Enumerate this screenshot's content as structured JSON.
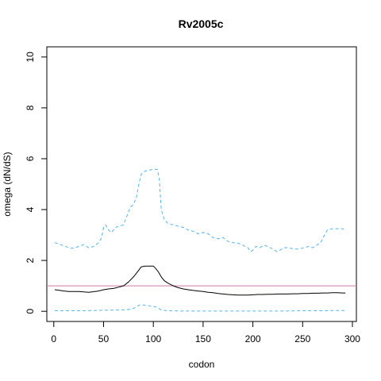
{
  "chart_data": {
    "type": "line",
    "title": "Rv2005c",
    "xlabel": "codon",
    "ylabel": "omega (dN/dS)",
    "xlim": [
      -7,
      304
    ],
    "ylim": [
      -0.4,
      10.4
    ],
    "xticks": [
      0,
      50,
      100,
      150,
      200,
      250,
      300
    ],
    "yticks": [
      0,
      2,
      4,
      6,
      8,
      10
    ],
    "grid": false,
    "reference_line": {
      "y": 1,
      "color": "#cc79a7"
    },
    "series": [
      {
        "role": "upper",
        "style": "dashed",
        "color": "#56b4e9",
        "points": [
          [
            1,
            2.7
          ],
          [
            5,
            2.65
          ],
          [
            10,
            2.58
          ],
          [
            15,
            2.5
          ],
          [
            20,
            2.48
          ],
          [
            25,
            2.55
          ],
          [
            30,
            2.62
          ],
          [
            35,
            2.5
          ],
          [
            40,
            2.55
          ],
          [
            45,
            2.7
          ],
          [
            48,
            2.9
          ],
          [
            50,
            3.3
          ],
          [
            52,
            3.4
          ],
          [
            55,
            3.2
          ],
          [
            58,
            3.1
          ],
          [
            62,
            3.3
          ],
          [
            66,
            3.35
          ],
          [
            70,
            3.4
          ],
          [
            74,
            3.8
          ],
          [
            77,
            4.1
          ],
          [
            80,
            4.2
          ],
          [
            83,
            4.5
          ],
          [
            86,
            5.1
          ],
          [
            88,
            5.4
          ],
          [
            91,
            5.5
          ],
          [
            95,
            5.55
          ],
          [
            100,
            5.58
          ],
          [
            104,
            5.58
          ],
          [
            106,
            5.2
          ],
          [
            108,
            4.0
          ],
          [
            111,
            3.6
          ],
          [
            115,
            3.45
          ],
          [
            120,
            3.4
          ],
          [
            125,
            3.35
          ],
          [
            130,
            3.3
          ],
          [
            135,
            3.2
          ],
          [
            140,
            3.15
          ],
          [
            145,
            3.05
          ],
          [
            150,
            3.1
          ],
          [
            155,
            3.05
          ],
          [
            160,
            2.9
          ],
          [
            165,
            2.85
          ],
          [
            170,
            2.9
          ],
          [
            175,
            2.75
          ],
          [
            180,
            2.7
          ],
          [
            185,
            2.68
          ],
          [
            190,
            2.6
          ],
          [
            195,
            2.5
          ],
          [
            198,
            2.35
          ],
          [
            200,
            2.4
          ],
          [
            203,
            2.55
          ],
          [
            207,
            2.5
          ],
          [
            211,
            2.6
          ],
          [
            215,
            2.55
          ],
          [
            220,
            2.45
          ],
          [
            224,
            2.35
          ],
          [
            227,
            2.4
          ],
          [
            231,
            2.5
          ],
          [
            236,
            2.5
          ],
          [
            241,
            2.45
          ],
          [
            246,
            2.45
          ],
          [
            251,
            2.5
          ],
          [
            256,
            2.55
          ],
          [
            260,
            2.5
          ],
          [
            264,
            2.6
          ],
          [
            268,
            2.7
          ],
          [
            272,
            3.0
          ],
          [
            275,
            3.2
          ],
          [
            280,
            3.25
          ],
          [
            285,
            3.25
          ],
          [
            290,
            3.25
          ],
          [
            293,
            3.2
          ]
        ]
      },
      {
        "role": "estimate",
        "style": "solid",
        "color": "#000000",
        "points": [
          [
            1,
            0.85
          ],
          [
            5,
            0.83
          ],
          [
            10,
            0.8
          ],
          [
            15,
            0.78
          ],
          [
            20,
            0.78
          ],
          [
            25,
            0.78
          ],
          [
            30,
            0.76
          ],
          [
            35,
            0.75
          ],
          [
            40,
            0.77
          ],
          [
            45,
            0.8
          ],
          [
            50,
            0.85
          ],
          [
            55,
            0.88
          ],
          [
            60,
            0.9
          ],
          [
            65,
            0.95
          ],
          [
            70,
            1.0
          ],
          [
            75,
            1.15
          ],
          [
            80,
            1.35
          ],
          [
            85,
            1.6
          ],
          [
            88,
            1.75
          ],
          [
            92,
            1.78
          ],
          [
            96,
            1.78
          ],
          [
            100,
            1.78
          ],
          [
            102,
            1.7
          ],
          [
            105,
            1.55
          ],
          [
            108,
            1.35
          ],
          [
            111,
            1.2
          ],
          [
            115,
            1.1
          ],
          [
            120,
            1.0
          ],
          [
            125,
            0.93
          ],
          [
            130,
            0.88
          ],
          [
            135,
            0.85
          ],
          [
            140,
            0.82
          ],
          [
            145,
            0.8
          ],
          [
            150,
            0.78
          ],
          [
            155,
            0.75
          ],
          [
            160,
            0.73
          ],
          [
            165,
            0.7
          ],
          [
            170,
            0.68
          ],
          [
            175,
            0.66
          ],
          [
            180,
            0.65
          ],
          [
            185,
            0.64
          ],
          [
            190,
            0.64
          ],
          [
            195,
            0.64
          ],
          [
            200,
            0.65
          ],
          [
            205,
            0.66
          ],
          [
            210,
            0.66
          ],
          [
            215,
            0.67
          ],
          [
            220,
            0.67
          ],
          [
            225,
            0.68
          ],
          [
            230,
            0.68
          ],
          [
            235,
            0.68
          ],
          [
            240,
            0.69
          ],
          [
            245,
            0.69
          ],
          [
            250,
            0.7
          ],
          [
            255,
            0.7
          ],
          [
            260,
            0.71
          ],
          [
            265,
            0.71
          ],
          [
            270,
            0.72
          ],
          [
            275,
            0.72
          ],
          [
            280,
            0.73
          ],
          [
            285,
            0.73
          ],
          [
            290,
            0.72
          ],
          [
            293,
            0.72
          ]
        ]
      },
      {
        "role": "lower",
        "style": "dashed",
        "color": "#56b4e9",
        "points": [
          [
            1,
            0.02
          ],
          [
            10,
            0.02
          ],
          [
            20,
            0.02
          ],
          [
            30,
            0.02
          ],
          [
            40,
            0.03
          ],
          [
            50,
            0.04
          ],
          [
            60,
            0.05
          ],
          [
            70,
            0.06
          ],
          [
            78,
            0.08
          ],
          [
            82,
            0.15
          ],
          [
            86,
            0.25
          ],
          [
            90,
            0.25
          ],
          [
            95,
            0.22
          ],
          [
            100,
            0.2
          ],
          [
            104,
            0.15
          ],
          [
            108,
            0.05
          ],
          [
            115,
            0.02
          ],
          [
            130,
            0.01
          ],
          [
            150,
            0.01
          ],
          [
            170,
            0.01
          ],
          [
            190,
            0.01
          ],
          [
            210,
            0.01
          ],
          [
            230,
            0.01
          ],
          [
            250,
            0.02
          ],
          [
            270,
            0.02
          ],
          [
            285,
            0.03
          ],
          [
            293,
            0.03
          ]
        ]
      }
    ]
  }
}
